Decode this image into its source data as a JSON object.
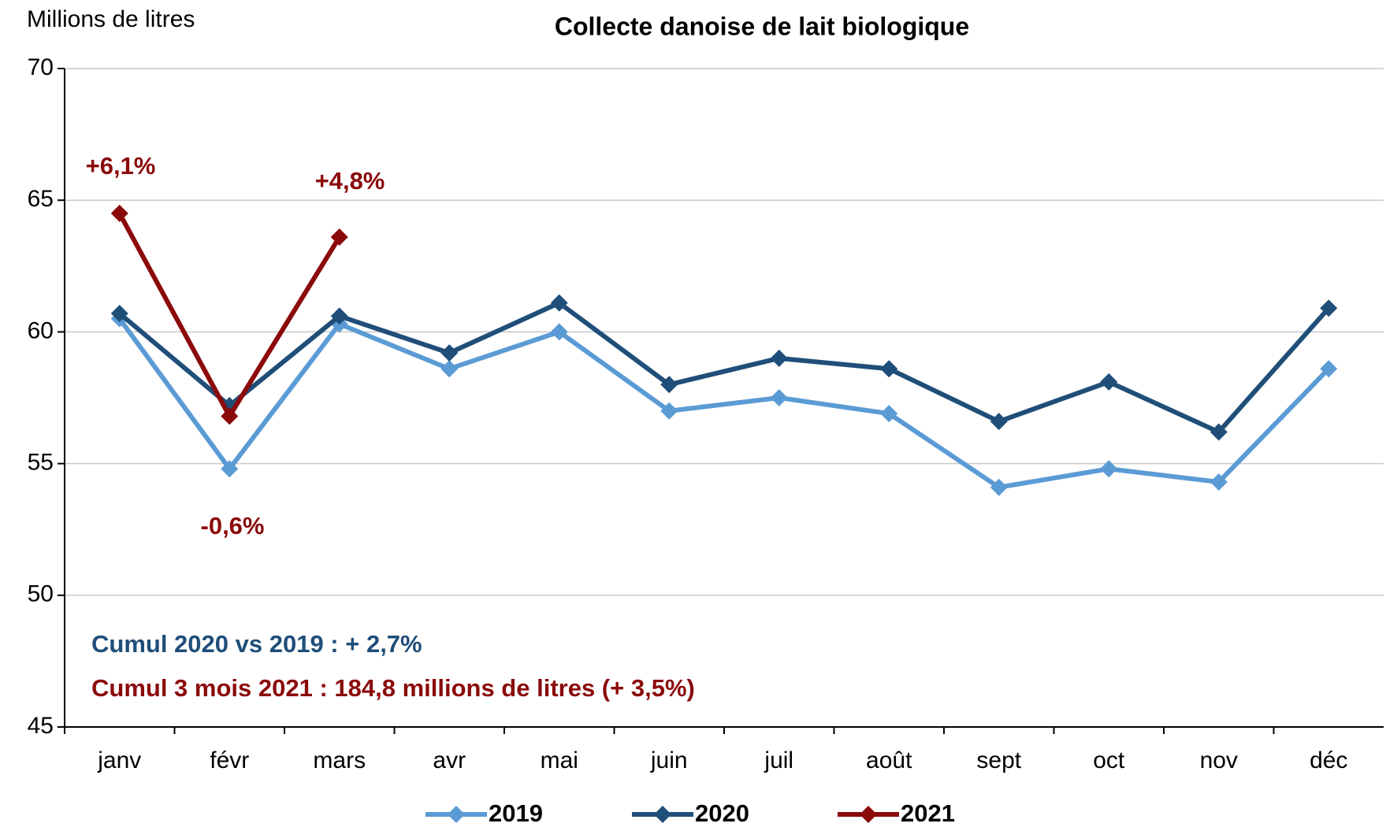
{
  "chart_data": {
    "type": "line",
    "title": "Collecte danoise de lait biologique",
    "y_label": "Millions de litres",
    "categories": [
      "janv",
      "févr",
      "mars",
      "avr",
      "mai",
      "juin",
      "juil",
      "août",
      "sept",
      "oct",
      "nov",
      "déc"
    ],
    "series": [
      {
        "name": "2019",
        "color": "#5b9bd5",
        "values": [
          60.5,
          54.8,
          60.3,
          58.6,
          60.0,
          57.0,
          57.5,
          56.9,
          54.1,
          54.8,
          54.3,
          58.6
        ]
      },
      {
        "name": "2020",
        "color": "#1f4e79",
        "values": [
          60.7,
          57.2,
          60.6,
          59.2,
          61.1,
          58.0,
          59.0,
          58.6,
          56.6,
          58.1,
          56.2,
          60.9
        ]
      },
      {
        "name": "2021",
        "color": "#8b0a0a",
        "values": [
          64.5,
          56.8,
          63.6,
          null,
          null,
          null,
          null,
          null,
          null,
          null,
          null,
          null
        ]
      }
    ],
    "annotations": [
      {
        "text": "+6,1%",
        "color": "#8b0a0a"
      },
      {
        "text": "-0,6%",
        "color": "#8b0a0a"
      },
      {
        "text": "+4,8%",
        "color": "#8b0a0a"
      },
      {
        "text": "Cumul 2020 vs 2019 : + 2,7%",
        "color": "#1f4e79"
      },
      {
        "text": "Cumul 3 mois 2021 : 184,8 millions de litres (+ 3,5%)",
        "color": "#8b0a0a"
      }
    ],
    "ylim": [
      45,
      70
    ],
    "yticks": [
      45,
      50,
      55,
      60,
      65,
      70
    ],
    "grid": true,
    "legend": "bottom"
  }
}
